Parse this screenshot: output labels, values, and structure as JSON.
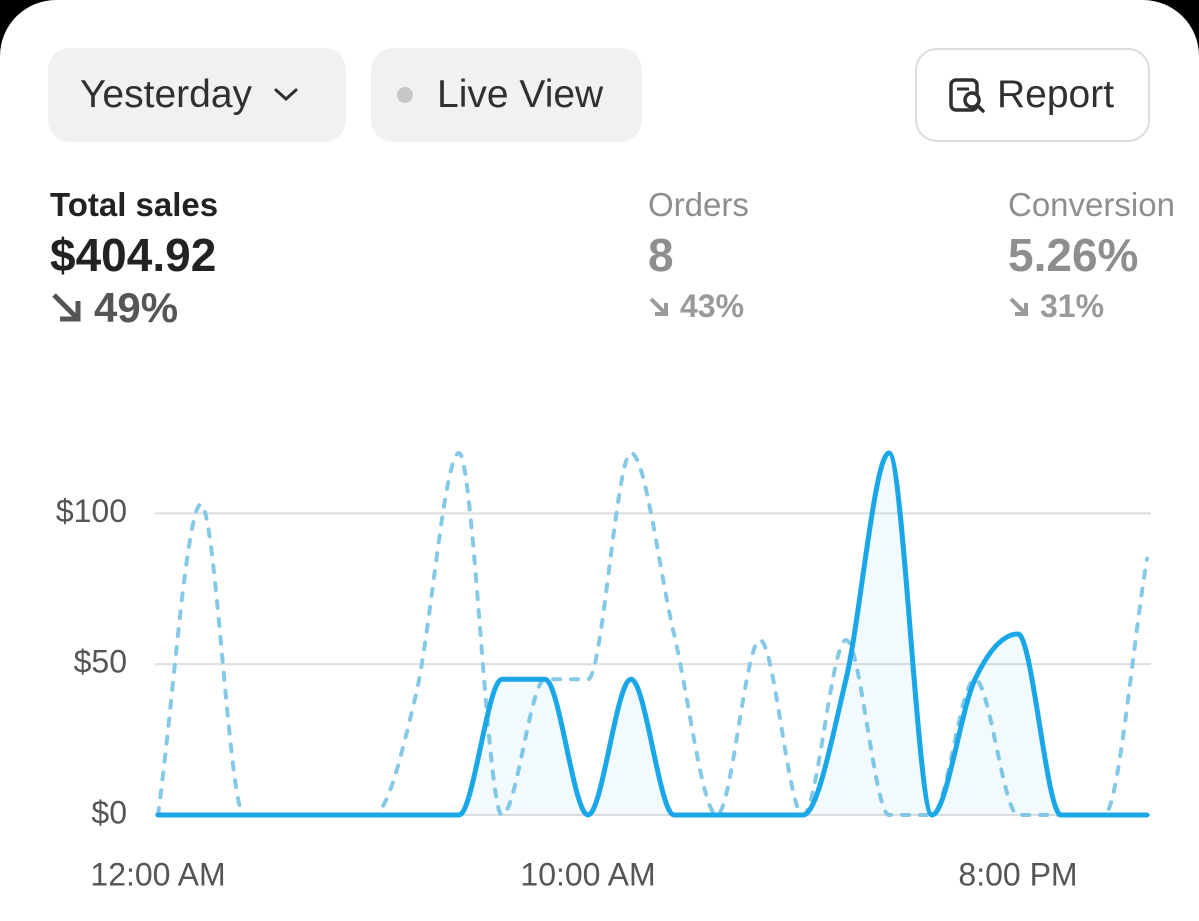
{
  "toolbar": {
    "date_range": "Yesterday",
    "live_view": "Live View",
    "report": "Report"
  },
  "metrics": [
    {
      "label": "Total sales",
      "value": "$404.92",
      "change": "49%"
    },
    {
      "label": "Orders",
      "value": "8",
      "change": "43%"
    },
    {
      "label": "Conversion",
      "value": "5.26%",
      "change": "31%"
    }
  ],
  "chart_data": {
    "type": "line",
    "categories": [
      "12:00 AM",
      null,
      null,
      null,
      null,
      null,
      null,
      null,
      null,
      null,
      "10:00 AM",
      null,
      null,
      null,
      null,
      null,
      null,
      null,
      null,
      null,
      "8:00 PM",
      null,
      null,
      null
    ],
    "series": [
      {
        "color": "#1aa7e8",
        "style": "solid",
        "area": true,
        "values": [
          0,
          0,
          0,
          0,
          0,
          0,
          0,
          0,
          45,
          45,
          0,
          45,
          0,
          0,
          0,
          0,
          45,
          120,
          0,
          45,
          60,
          0,
          0,
          0
        ]
      },
      {
        "color": "#86c9e6",
        "style": "dashed",
        "area": false,
        "values": [
          0,
          103,
          0,
          0,
          0,
          0,
          40,
          120,
          0,
          45,
          45,
          120,
          60,
          0,
          58,
          0,
          58,
          0,
          0,
          45,
          0,
          0,
          0,
          85
        ]
      }
    ],
    "ylim": [
      0,
      120
    ],
    "yticks": [
      {
        "value": 0,
        "label": "$0"
      },
      {
        "value": 50,
        "label": "$50"
      },
      {
        "value": 100,
        "label": "$100"
      }
    ],
    "grid": true
  }
}
